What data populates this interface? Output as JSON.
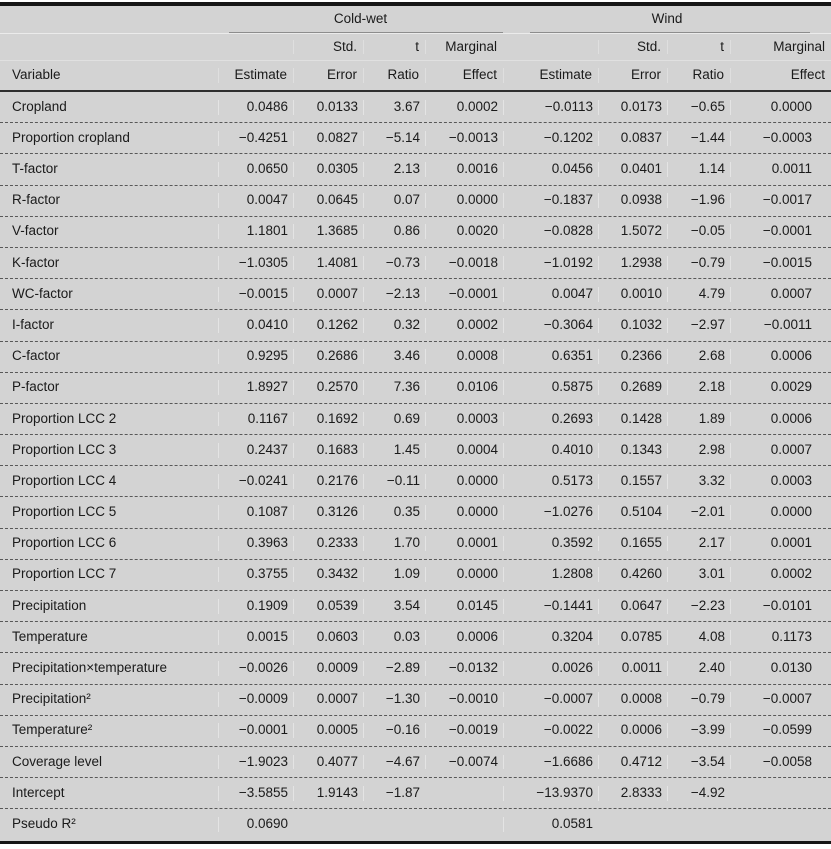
{
  "colors": {
    "background": "#d3d3d3",
    "heavy_rule": "#161616",
    "header_rule": "#2e2e2e",
    "group_underline": "#8d8d8d",
    "text": "#1a1a1a"
  },
  "table": {
    "group_headers": [
      {
        "label": ""
      },
      {
        "label": "Cold-wet"
      },
      {
        "label": "Wind"
      }
    ],
    "subheader_line1": [
      "",
      "",
      "Std.",
      "t",
      "Marginal",
      "",
      "Std.",
      "t",
      "Marginal"
    ],
    "subheader_line2": [
      "Variable",
      "Estimate",
      "Error",
      "Ratio",
      "Effect",
      "Estimate",
      "Error",
      "Ratio",
      "Effect"
    ],
    "rows": [
      {
        "variable": "Cropland",
        "values": [
          "0.0486",
          "0.0133",
          "3.67",
          "0.0002",
          "−0.0113",
          "0.0173",
          "−0.65",
          "0.0000"
        ]
      },
      {
        "variable": "Proportion cropland",
        "values": [
          "−0.4251",
          "0.0827",
          "−5.14",
          "−0.0013",
          "−0.1202",
          "0.0837",
          "−1.44",
          "−0.0003"
        ]
      },
      {
        "variable": "T-factor",
        "values": [
          "0.0650",
          "0.0305",
          "2.13",
          "0.0016",
          "0.0456",
          "0.0401",
          "1.14",
          "0.0011"
        ]
      },
      {
        "variable": "R-factor",
        "values": [
          "0.0047",
          "0.0645",
          "0.07",
          "0.0000",
          "−0.1837",
          "0.0938",
          "−1.96",
          "−0.0017"
        ]
      },
      {
        "variable": "V-factor",
        "values": [
          "1.1801",
          "1.3685",
          "0.86",
          "0.0020",
          "−0.0828",
          "1.5072",
          "−0.05",
          "−0.0001"
        ]
      },
      {
        "variable": "K-factor",
        "values": [
          "−1.0305",
          "1.4081",
          "−0.73",
          "−0.0018",
          "−1.0192",
          "1.2938",
          "−0.79",
          "−0.0015"
        ]
      },
      {
        "variable": "WC-factor",
        "values": [
          "−0.0015",
          "0.0007",
          "−2.13",
          "−0.0001",
          "0.0047",
          "0.0010",
          "4.79",
          "0.0007"
        ]
      },
      {
        "variable": "I-factor",
        "values": [
          "0.0410",
          "0.1262",
          "0.32",
          "0.0002",
          "−0.3064",
          "0.1032",
          "−2.97",
          "−0.0011"
        ]
      },
      {
        "variable": "C-factor",
        "values": [
          "0.9295",
          "0.2686",
          "3.46",
          "0.0008",
          "0.6351",
          "0.2366",
          "2.68",
          "0.0006"
        ]
      },
      {
        "variable": "P-factor",
        "values": [
          "1.8927",
          "0.2570",
          "7.36",
          "0.0106",
          "0.5875",
          "0.2689",
          "2.18",
          "0.0029"
        ]
      },
      {
        "variable": "Proportion LCC 2",
        "values": [
          "0.1167",
          "0.1692",
          "0.69",
          "0.0003",
          "0.2693",
          "0.1428",
          "1.89",
          "0.0006"
        ]
      },
      {
        "variable": "Proportion LCC 3",
        "values": [
          "0.2437",
          "0.1683",
          "1.45",
          "0.0004",
          "0.4010",
          "0.1343",
          "2.98",
          "0.0007"
        ]
      },
      {
        "variable": "Proportion LCC 4",
        "values": [
          "−0.0241",
          "0.2176",
          "−0.11",
          "0.0000",
          "0.5173",
          "0.1557",
          "3.32",
          "0.0003"
        ]
      },
      {
        "variable": "Proportion LCC 5",
        "values": [
          "0.1087",
          "0.3126",
          "0.35",
          "0.0000",
          "−1.0276",
          "0.5104",
          "−2.01",
          "0.0000"
        ]
      },
      {
        "variable": "Proportion LCC 6",
        "values": [
          "0.3963",
          "0.2333",
          "1.70",
          "0.0001",
          "0.3592",
          "0.1655",
          "2.17",
          "0.0001"
        ]
      },
      {
        "variable": "Proportion LCC 7",
        "values": [
          "0.3755",
          "0.3432",
          "1.09",
          "0.0000",
          "1.2808",
          "0.4260",
          "3.01",
          "0.0002"
        ]
      },
      {
        "variable": "Precipitation",
        "values": [
          "0.1909",
          "0.0539",
          "3.54",
          "0.0145",
          "−0.1441",
          "0.0647",
          "−2.23",
          "−0.0101"
        ]
      },
      {
        "variable": "Temperature",
        "values": [
          "0.0015",
          "0.0603",
          "0.03",
          "0.0006",
          "0.3204",
          "0.0785",
          "4.08",
          "0.1173"
        ]
      },
      {
        "variable": "Precipitation×temperature",
        "values": [
          "−0.0026",
          "0.0009",
          "−2.89",
          "−0.0132",
          "0.0026",
          "0.0011",
          "2.40",
          "0.0130"
        ]
      },
      {
        "variable": "Precipitation²",
        "values": [
          "−0.0009",
          "0.0007",
          "−1.30",
          "−0.0010",
          "−0.0007",
          "0.0008",
          "−0.79",
          "−0.0007"
        ]
      },
      {
        "variable": "Temperature²",
        "values": [
          "−0.0001",
          "0.0005",
          "−0.16",
          "−0.0019",
          "−0.0022",
          "0.0006",
          "−3.99",
          "−0.0599"
        ]
      },
      {
        "variable": "Coverage level",
        "values": [
          "−1.9023",
          "0.4077",
          "−4.67",
          "−0.0074",
          "−1.6686",
          "0.4712",
          "−3.54",
          "−0.0058"
        ]
      },
      {
        "variable": "Intercept",
        "values": [
          "−3.5855",
          "1.9143",
          "−1.87",
          "",
          "−13.9370",
          "2.8333",
          "−4.92",
          ""
        ]
      },
      {
        "variable": "Pseudo R²",
        "values": [
          "0.0690",
          "",
          "",
          "",
          "0.0581",
          "",
          "",
          ""
        ]
      }
    ]
  }
}
